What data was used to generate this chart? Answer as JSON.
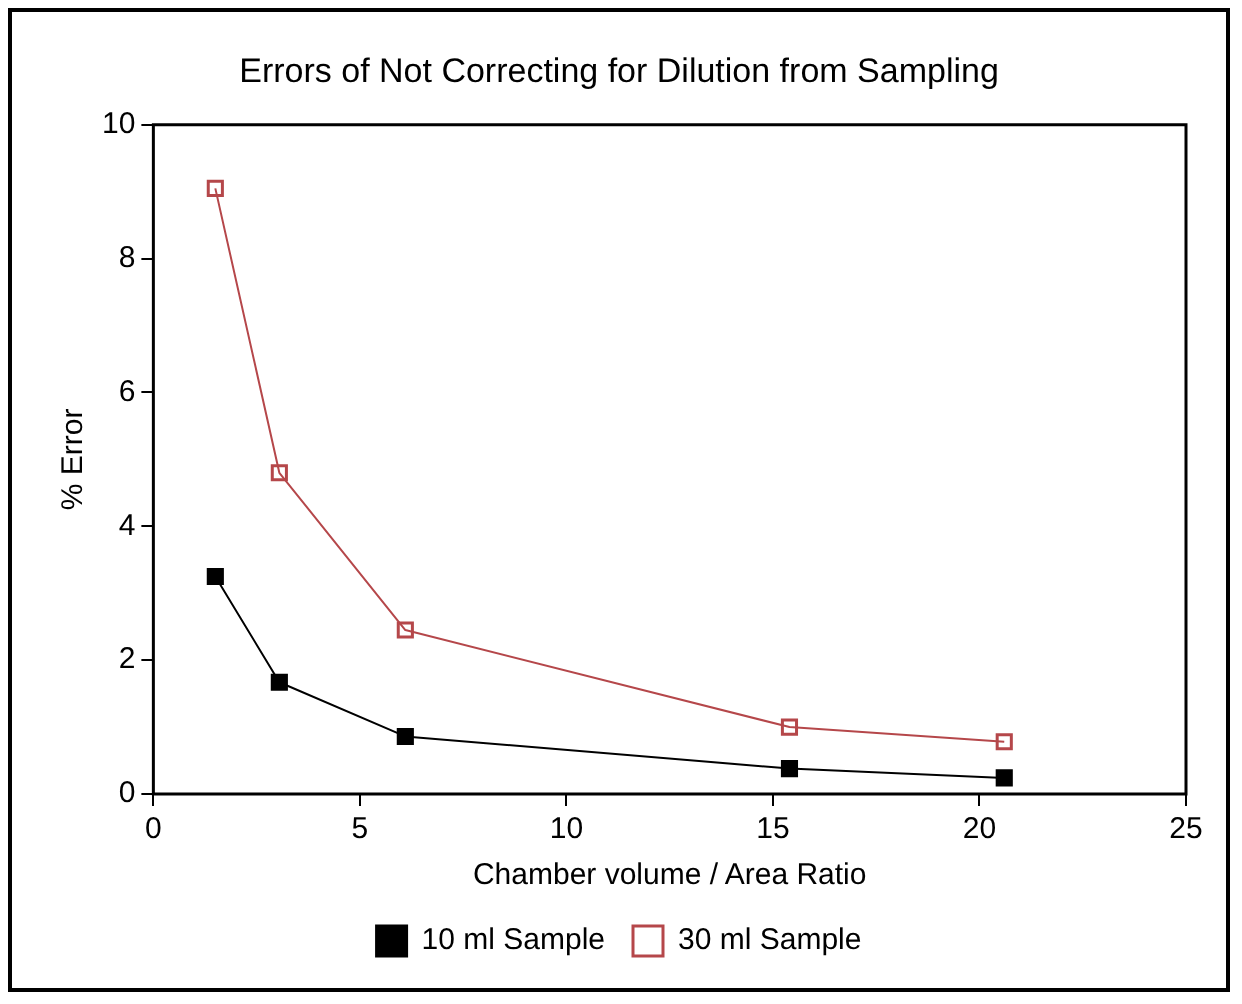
{
  "chart_data": {
    "type": "line",
    "title": "Errors of Not Correcting for Dilution from Sampling",
    "xlabel": "Chamber volume / Area Ratio",
    "ylabel": "% Error",
    "x": [
      1.5,
      3.05,
      6.1,
      15.4,
      20.6
    ],
    "series": [
      {
        "name": "10 ml Sample",
        "color": "#000000",
        "marker": "square",
        "values": [
          3.25,
          1.67,
          0.86,
          0.38,
          0.24
        ]
      },
      {
        "name": "30 ml Sample",
        "color": "#b5474a",
        "marker": "square_open",
        "values": [
          9.05,
          4.8,
          2.45,
          1.0,
          0.78
        ]
      }
    ],
    "xlim": [
      0,
      25
    ],
    "xticks": [
      0,
      5,
      10,
      15,
      20,
      25
    ],
    "ylim": [
      0,
      10
    ],
    "yticks": [
      0,
      2,
      4,
      6,
      8,
      10
    ],
    "grid": false,
    "legend": "bottom"
  }
}
